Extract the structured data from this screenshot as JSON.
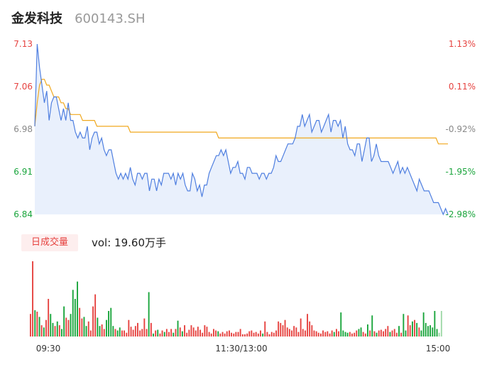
{
  "header": {
    "name": "金发科技",
    "code": "600143.SH"
  },
  "volume_panel": {
    "badge_label": "日成交量",
    "vol_label": "vol: 19.60万手"
  },
  "colors": {
    "up": "#e64340",
    "down": "#1aa53c",
    "neutral": "#888888",
    "price_line": "#4f7fe0",
    "avg_line": "#f0a81e",
    "fill": "#e9f0fc"
  },
  "chart_data": [
    {
      "type": "line",
      "title": "",
      "ylim": [
        6.84,
        7.13
      ],
      "y_ticks": [
        "7.13",
        "7.06",
        "6.98",
        "6.91",
        "6.84"
      ],
      "y_ticks_right": [
        "1.13%",
        "0.11%",
        "-0.92%",
        "-1.95%",
        "-2.98%"
      ],
      "x_ticks": [
        "09:30",
        "11:30/13:00",
        "15:00"
      ],
      "grid": false,
      "legend": "none",
      "series": [
        {
          "values": [
            6.99,
            7.13,
            7.09,
            7.06,
            7.03,
            7.05,
            7.0,
            7.03,
            7.04,
            7.04,
            7.02,
            7.0,
            7.02,
            7.0,
            7.03,
            7.0,
            7.0,
            6.98,
            6.97,
            6.98,
            6.97,
            6.97,
            6.99,
            6.95,
            6.97,
            6.98,
            6.98,
            6.96,
            6.97,
            6.95,
            6.94,
            6.95,
            6.95,
            6.93,
            6.91,
            6.9,
            6.91,
            6.9,
            6.91,
            6.9,
            6.92,
            6.9,
            6.89,
            6.91,
            6.91,
            6.9,
            6.91,
            6.91,
            6.88,
            6.9,
            6.9,
            6.88,
            6.9,
            6.89,
            6.91,
            6.91,
            6.91,
            6.9,
            6.91,
            6.89,
            6.91,
            6.9,
            6.91,
            6.89,
            6.88,
            6.88,
            6.91,
            6.9,
            6.88,
            6.89,
            6.87,
            6.89,
            6.89,
            6.91,
            6.92,
            6.93,
            6.94,
            6.94,
            6.95,
            6.94,
            6.95,
            6.93,
            6.91,
            6.92,
            6.92,
            6.93,
            6.91,
            6.91,
            6.9,
            6.92,
            6.92,
            6.91,
            6.91,
            6.91,
            6.9,
            6.91,
            6.91,
            6.9,
            6.91,
            6.91,
            6.92,
            6.94,
            6.93,
            6.93,
            6.94,
            6.95,
            6.96,
            6.96,
            6.96,
            6.97,
            6.99,
            6.99,
            7.01,
            6.99,
            7.0,
            7.01,
            6.98,
            6.99,
            7.0,
            7.0,
            6.98,
            6.99,
            7.0,
            7.01,
            6.98,
            7.0,
            7.0,
            6.99,
            7.0,
            6.97,
            6.99,
            6.96,
            6.95,
            6.95,
            6.94,
            6.96,
            6.96,
            6.93,
            6.95,
            6.97,
            6.97,
            6.93,
            6.94,
            6.96,
            6.94,
            6.93,
            6.93,
            6.93,
            6.93,
            6.92,
            6.91,
            6.92,
            6.93,
            6.91,
            6.92,
            6.91,
            6.92,
            6.91,
            6.9,
            6.89,
            6.88,
            6.9,
            6.89,
            6.88,
            6.88,
            6.88,
            6.87,
            6.86,
            6.86,
            6.86,
            6.85,
            6.84,
            6.85,
            6.84
          ]
        },
        {
          "values": [
            6.99,
            7.03,
            7.06,
            7.07,
            7.07,
            7.06,
            7.06,
            7.05,
            7.04,
            7.04,
            7.04,
            7.03,
            7.03,
            7.02,
            7.02,
            7.01,
            7.01,
            7.01,
            7.01,
            7.01,
            7.0,
            7.0,
            7.0,
            7.0,
            7.0,
            7.0,
            6.99,
            6.99,
            6.99,
            6.99,
            6.99,
            6.99,
            6.99,
            6.99,
            6.99,
            6.99,
            6.99,
            6.99,
            6.99,
            6.99,
            6.98,
            6.98,
            6.98,
            6.98,
            6.98,
            6.98,
            6.98,
            6.98,
            6.98,
            6.98,
            6.98,
            6.98,
            6.98,
            6.98,
            6.98,
            6.98,
            6.98,
            6.98,
            6.98,
            6.98,
            6.98,
            6.98,
            6.98,
            6.98,
            6.98,
            6.98,
            6.98,
            6.98,
            6.98,
            6.98,
            6.98,
            6.98,
            6.98,
            6.98,
            6.98,
            6.98,
            6.98,
            6.97,
            6.97,
            6.97,
            6.97,
            6.97,
            6.97,
            6.97,
            6.97,
            6.97,
            6.97,
            6.97,
            6.97,
            6.97,
            6.97,
            6.97,
            6.97,
            6.97,
            6.97,
            6.97,
            6.97,
            6.97,
            6.97,
            6.97,
            6.97,
            6.97,
            6.97,
            6.97,
            6.97,
            6.97,
            6.97,
            6.97,
            6.97,
            6.97,
            6.97,
            6.97,
            6.97,
            6.97,
            6.97,
            6.97,
            6.97,
            6.97,
            6.97,
            6.97,
            6.97,
            6.97,
            6.97,
            6.97,
            6.97,
            6.97,
            6.97,
            6.97,
            6.97,
            6.97,
            6.97,
            6.97,
            6.97,
            6.97,
            6.97,
            6.97,
            6.97,
            6.97,
            6.97,
            6.97,
            6.97,
            6.97,
            6.97,
            6.97,
            6.97,
            6.97,
            6.97,
            6.97,
            6.97,
            6.97,
            6.97,
            6.97,
            6.97,
            6.97,
            6.97,
            6.97,
            6.97,
            6.97,
            6.97,
            6.97,
            6.97,
            6.97,
            6.97,
            6.97,
            6.97,
            6.97,
            6.97,
            6.97,
            6.97,
            6.96,
            6.96,
            6.96,
            6.96,
            6.96
          ]
        }
      ]
    },
    {
      "type": "bar",
      "title": "",
      "ylim": [
        0,
        100
      ],
      "values": [
        30,
        100,
        35,
        33,
        26,
        15,
        12,
        22,
        50,
        30,
        18,
        14,
        20,
        15,
        10,
        40,
        25,
        22,
        30,
        62,
        50,
        73,
        38,
        24,
        26,
        14,
        20,
        8,
        40,
        56,
        25,
        14,
        16,
        10,
        22,
        34,
        38,
        14,
        10,
        8,
        12,
        8,
        8,
        5,
        22,
        13,
        9,
        14,
        18,
        8,
        10,
        24,
        10,
        59,
        18,
        4,
        8,
        9,
        4,
        8,
        6,
        10,
        6,
        10,
        5,
        10,
        21,
        12,
        7,
        15,
        5,
        9,
        15,
        12,
        8,
        13,
        9,
        5,
        15,
        13,
        6,
        4,
        10,
        8,
        7,
        4,
        6,
        4,
        7,
        8,
        5,
        4,
        6,
        6,
        10,
        3,
        3,
        4,
        7,
        8,
        5,
        6,
        4,
        8,
        4,
        20,
        6,
        3,
        6,
        5,
        8,
        20,
        18,
        15,
        22,
        12,
        10,
        8,
        14,
        12,
        6,
        24,
        10,
        8,
        30,
        20,
        15,
        8,
        7,
        5,
        4,
        8,
        6,
        7,
        4,
        8,
        6,
        10,
        7,
        32,
        8,
        6,
        5,
        6,
        4,
        5,
        8,
        10,
        12,
        6,
        4,
        16,
        8,
        28,
        7,
        5,
        8,
        9,
        7,
        10,
        14,
        6,
        8,
        10,
        5,
        14,
        5,
        30,
        8,
        28,
        15,
        20,
        22,
        18,
        12,
        8,
        32,
        18,
        14,
        15,
        12,
        34,
        10,
        5,
        34
      ],
      "colors": [
        "up",
        "up",
        "down",
        "up",
        "down",
        "up",
        "down",
        "up",
        "up",
        "down",
        "down",
        "up",
        "down",
        "up",
        "down",
        "down",
        "up",
        "up",
        "down",
        "down",
        "down",
        "down",
        "up",
        "up",
        "down",
        "down",
        "up",
        "up",
        "up",
        "up",
        "down",
        "down",
        "up",
        "up",
        "down",
        "down",
        "down",
        "down",
        "up",
        "down",
        "down",
        "up",
        "up",
        "up",
        "up",
        "up",
        "up",
        "up",
        "up",
        "up",
        "up",
        "up",
        "up",
        "down",
        "up",
        "down",
        "up",
        "down",
        "up",
        "up",
        "down",
        "up",
        "up",
        "up",
        "down",
        "up",
        "down",
        "up",
        "down",
        "up",
        "up",
        "up",
        "up",
        "up",
        "up",
        "up",
        "up",
        "up",
        "up",
        "up",
        "up",
        "up",
        "up",
        "up",
        "down",
        "up",
        "up",
        "up",
        "up",
        "up",
        "up",
        "up",
        "up",
        "up",
        "up",
        "up",
        "up",
        "up",
        "up",
        "up",
        "up",
        "up",
        "up",
        "up",
        "down",
        "up",
        "up",
        "up",
        "up",
        "up",
        "up",
        "up",
        "up",
        "up",
        "up",
        "up",
        "up",
        "up",
        "up",
        "up",
        "up",
        "up",
        "up",
        "up",
        "up",
        "up",
        "up",
        "up",
        "up",
        "up",
        "up",
        "up",
        "up",
        "up",
        "up",
        "up",
        "down",
        "up",
        "up",
        "down",
        "down",
        "down",
        "down",
        "up",
        "up",
        "up",
        "up",
        "down",
        "down",
        "up",
        "up",
        "down",
        "up",
        "down",
        "up",
        "down",
        "up",
        "up",
        "up",
        "up",
        "up",
        "down",
        "up",
        "up",
        "up",
        "down",
        "up",
        "down",
        "down",
        "up",
        "up",
        "down",
        "up",
        "down",
        "up",
        "down",
        "down",
        "down",
        "down",
        "down",
        "down",
        "down",
        "down",
        "neutral"
      ]
    }
  ]
}
